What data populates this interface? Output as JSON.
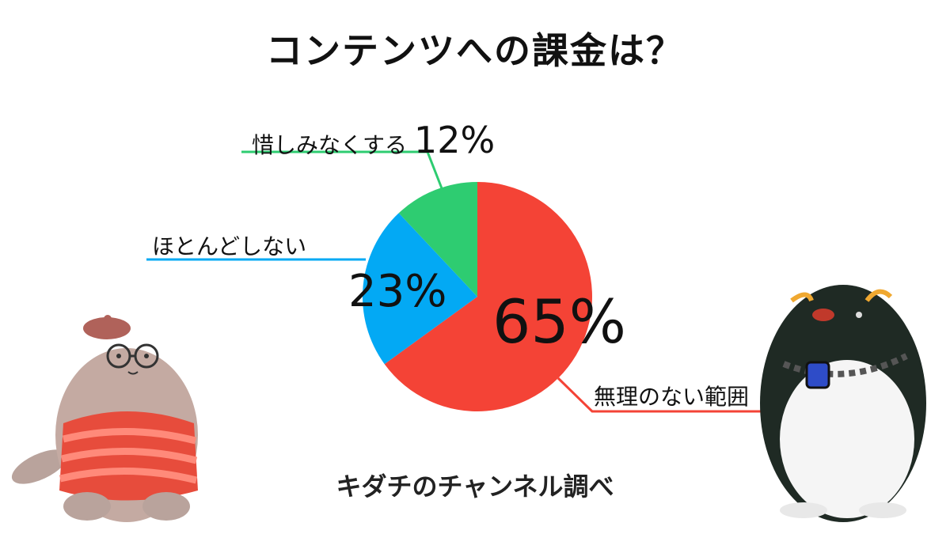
{
  "title": "コンテンツへの課金は？",
  "credit": "キダチのチャンネル調べ",
  "chart_data": {
    "type": "pie",
    "title": "コンテンツへの課金は？",
    "start_angle_deg": 0,
    "direction": "clockwise",
    "slices": [
      {
        "label": "無理のない範囲",
        "value": 65,
        "value_label": "65%",
        "color": "#f44336"
      },
      {
        "label": "ほとんどしない",
        "value": 23,
        "value_label": "23%",
        "color": "#03a9f4"
      },
      {
        "label": "惜しみなくする",
        "value": 12,
        "value_label": "12%",
        "color": "#2ecc71"
      }
    ]
  }
}
